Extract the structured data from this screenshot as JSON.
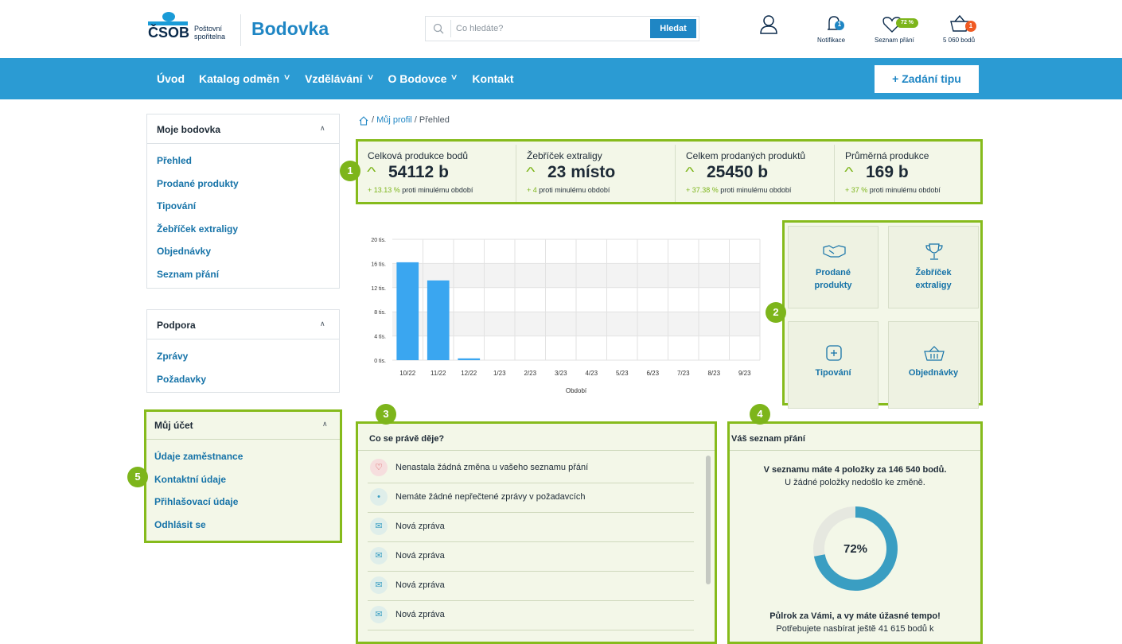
{
  "header": {
    "logo_top": "ČSOB",
    "logo_sub1": "Poštovní",
    "logo_sub2": "spořitelna",
    "app_name": "Bodovka",
    "search_placeholder": "Co hledáte?",
    "search_button": "Hledat",
    "notifications_label": "Notifikace",
    "notifications_badge": "1",
    "wishlist_label": "Seznam přání",
    "wishlist_badge": "72 %",
    "points_label": "5 060 bodů",
    "cart_badge": "1"
  },
  "nav": {
    "items": [
      "Úvod",
      "Katalog odměn",
      "Vzdělávání",
      "O Bodovce",
      "Kontakt"
    ],
    "has_dropdown": [
      false,
      true,
      true,
      true,
      false
    ],
    "cta": "+ Zadání tipu"
  },
  "breadcrumb": [
    "Můj profil",
    "Přehled"
  ],
  "sidebar": [
    {
      "title": "Moje bodovka",
      "items": [
        "Přehled",
        "Prodané produkty",
        "Tipování",
        "Žebříček extraligy",
        "Objednávky",
        "Seznam přání"
      ]
    },
    {
      "title": "Podpora",
      "items": [
        "Zprávy",
        "Požadavky"
      ]
    },
    {
      "title": "Můj účet",
      "items": [
        "Údaje zaměstnance",
        "Kontaktní údaje",
        "Přihlašovací údaje",
        "Odhlásit se"
      ]
    }
  ],
  "stats": [
    {
      "label": "Celková produkce bodů",
      "value": "54112 b",
      "change": "+ 13.13 %",
      "suffix": "proti minulému období"
    },
    {
      "label": "Žebříček extraligy",
      "value": "23 místo",
      "change": "+ 4",
      "suffix": "proti minulému období"
    },
    {
      "label": "Celkem prodaných produktů",
      "value": "25450 b",
      "change": "+ 37.38 %",
      "suffix": "proti minulému období"
    },
    {
      "label": "Průměrná produkce",
      "value": "169 b",
      "change": "+ 37 %",
      "suffix": "proti minulému období"
    }
  ],
  "tiles": [
    [
      "Prodané",
      "produkty"
    ],
    [
      "Žebříček",
      "extraligy"
    ],
    [
      "Tipování"
    ],
    [
      "Objednávky"
    ]
  ],
  "activity": {
    "title": "Co se právě děje?",
    "items": [
      "Nenastala žádná změna u vašeho seznamu přání",
      "Nemáte žádné nepřečtené zprávy v požadavcích",
      "Nová zpráva",
      "Nová zpráva",
      "Nová zpráva",
      "Nová zpráva"
    ]
  },
  "wishlist": {
    "title": "Váš seznam přání",
    "summary": "V seznamu máte 4 položky za 146 540 bodů.",
    "note": "U žádné položky nedošlo ke změně.",
    "footer_title": "Půlrok za Vámi, a vy máte úžasné tempo!",
    "footer_text": "Potřebujete nasbírat ještě 41 615 bodů k"
  },
  "callouts": [
    "1",
    "2",
    "3",
    "4",
    "5"
  ],
  "chart_data": [
    {
      "type": "bar",
      "x_label": "Období",
      "categories": [
        "10/22",
        "11/22",
        "12/22",
        "1/23",
        "2/23",
        "3/23",
        "4/23",
        "5/23",
        "6/23",
        "7/23",
        "8/23",
        "9/23"
      ],
      "values": [
        16200,
        13200,
        300,
        0,
        0,
        0,
        0,
        0,
        0,
        0,
        0,
        0
      ],
      "color": "#3aa6f0",
      "ylim": [
        0,
        20000
      ],
      "yticks": [
        {
          "value": 0,
          "label": "0 tis."
        },
        {
          "value": 4000,
          "label": "4 tis."
        },
        {
          "value": 8000,
          "label": "8 tis."
        },
        {
          "value": 12000,
          "label": "12 tis."
        },
        {
          "value": 16000,
          "label": "16 tis."
        },
        {
          "value": 20000,
          "label": "20 tis."
        }
      ],
      "grid": true
    },
    {
      "type": "donut",
      "values": [
        72
      ],
      "value_labels": [
        "72%"
      ],
      "color": "#3a9ec2",
      "ylim": [
        0,
        100
      ]
    }
  ]
}
